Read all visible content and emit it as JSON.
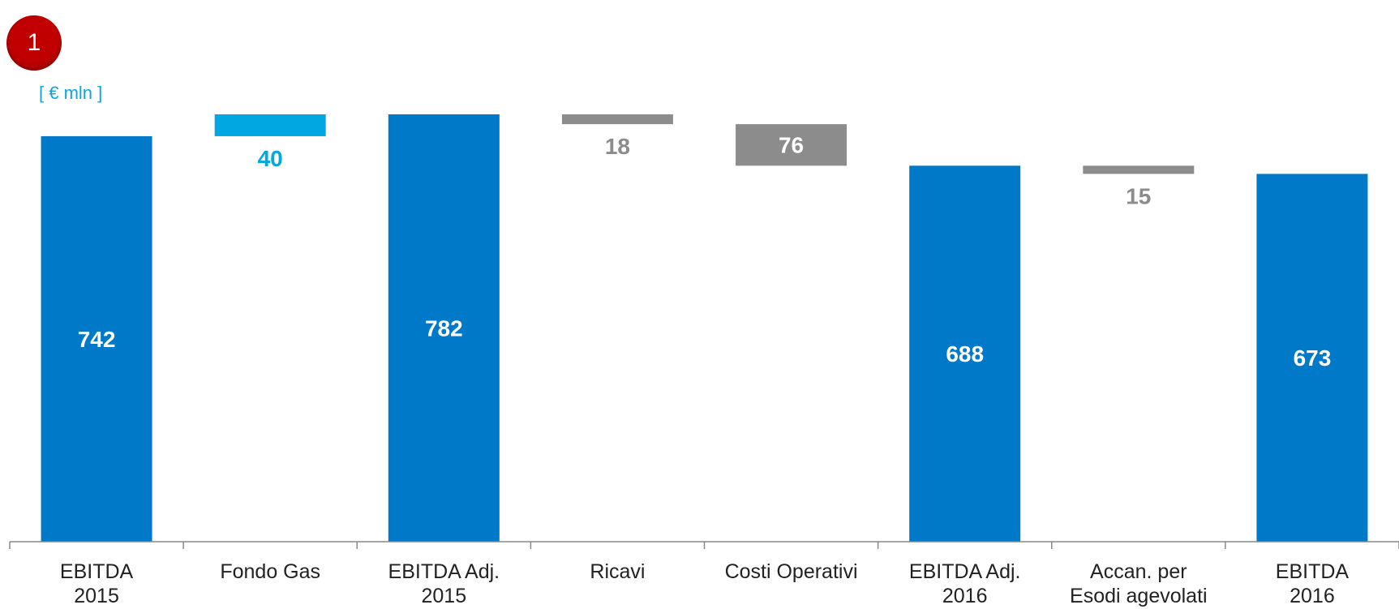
{
  "badge": "1",
  "unit_label": "[ € mln ]",
  "colors": {
    "total": "#0079c8",
    "increase": "#00a7e1",
    "decrease": "#8c8c8c",
    "badge": "#c00000"
  },
  "chart_data": {
    "type": "bar",
    "subtype": "waterfall",
    "categories": [
      [
        "EBITDA",
        "2015"
      ],
      [
        "Fondo Gas"
      ],
      [
        "EBITDA Adj.",
        "2015"
      ],
      [
        "Ricavi"
      ],
      [
        "Costi Operativi"
      ],
      [
        "EBITDA Adj.",
        "2016"
      ],
      [
        "Accan. per",
        "Esodi agevolati"
      ],
      [
        "EBITDA",
        "2016"
      ]
    ],
    "steps": [
      {
        "kind": "total",
        "value": 742,
        "label": "742"
      },
      {
        "kind": "increase",
        "value": 40,
        "label": "40"
      },
      {
        "kind": "total",
        "value": 782,
        "label": "782"
      },
      {
        "kind": "decrease",
        "value": 18,
        "label": "18"
      },
      {
        "kind": "decrease",
        "value": 76,
        "label": "76"
      },
      {
        "kind": "total",
        "value": 688,
        "label": "688"
      },
      {
        "kind": "decrease",
        "value": 15,
        "label": "15"
      },
      {
        "kind": "total",
        "value": 673,
        "label": "673"
      }
    ],
    "ylim": [
      0,
      782
    ],
    "grid": false,
    "legend": "none"
  }
}
